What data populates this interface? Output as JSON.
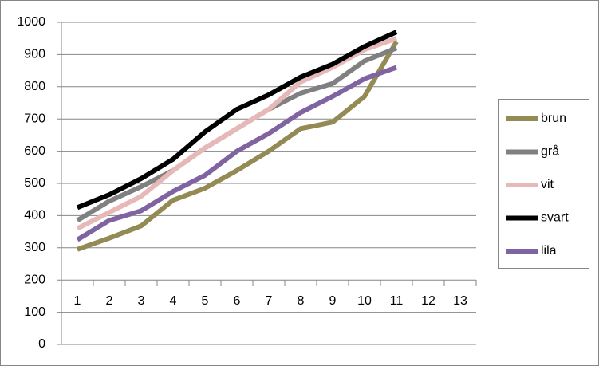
{
  "chart_data": {
    "type": "line",
    "categories": [
      "1",
      "2",
      "3",
      "4",
      "5",
      "6",
      "7",
      "8",
      "9",
      "10",
      "11",
      "12",
      "13"
    ],
    "series": [
      {
        "name": "brun",
        "color": "#948a54",
        "values": [
          295,
          330,
          368,
          448,
          485,
          540,
          600,
          670,
          690,
          770,
          940,
          null,
          null
        ]
      },
      {
        "name": "grå",
        "color": "#808080",
        "values": [
          385,
          445,
          490,
          540,
          610,
          670,
          730,
          780,
          810,
          880,
          920,
          null,
          null
        ]
      },
      {
        "name": "vit",
        "color": "#e6b9b8",
        "values": [
          360,
          410,
          460,
          540,
          610,
          670,
          730,
          815,
          860,
          915,
          950,
          null,
          null
        ]
      },
      {
        "name": "svart",
        "color": "#000000",
        "values": [
          425,
          465,
          515,
          575,
          660,
          730,
          775,
          830,
          870,
          925,
          970,
          null,
          null
        ]
      },
      {
        "name": "lila",
        "color": "#8064a2",
        "values": [
          325,
          385,
          415,
          475,
          525,
          600,
          655,
          720,
          770,
          825,
          860,
          null,
          null
        ]
      }
    ],
    "ylim": [
      0,
      1000
    ],
    "yticks": [
      0,
      100,
      200,
      300,
      400,
      500,
      600,
      700,
      800,
      900,
      1000
    ],
    "grid": true,
    "legend": "right"
  }
}
